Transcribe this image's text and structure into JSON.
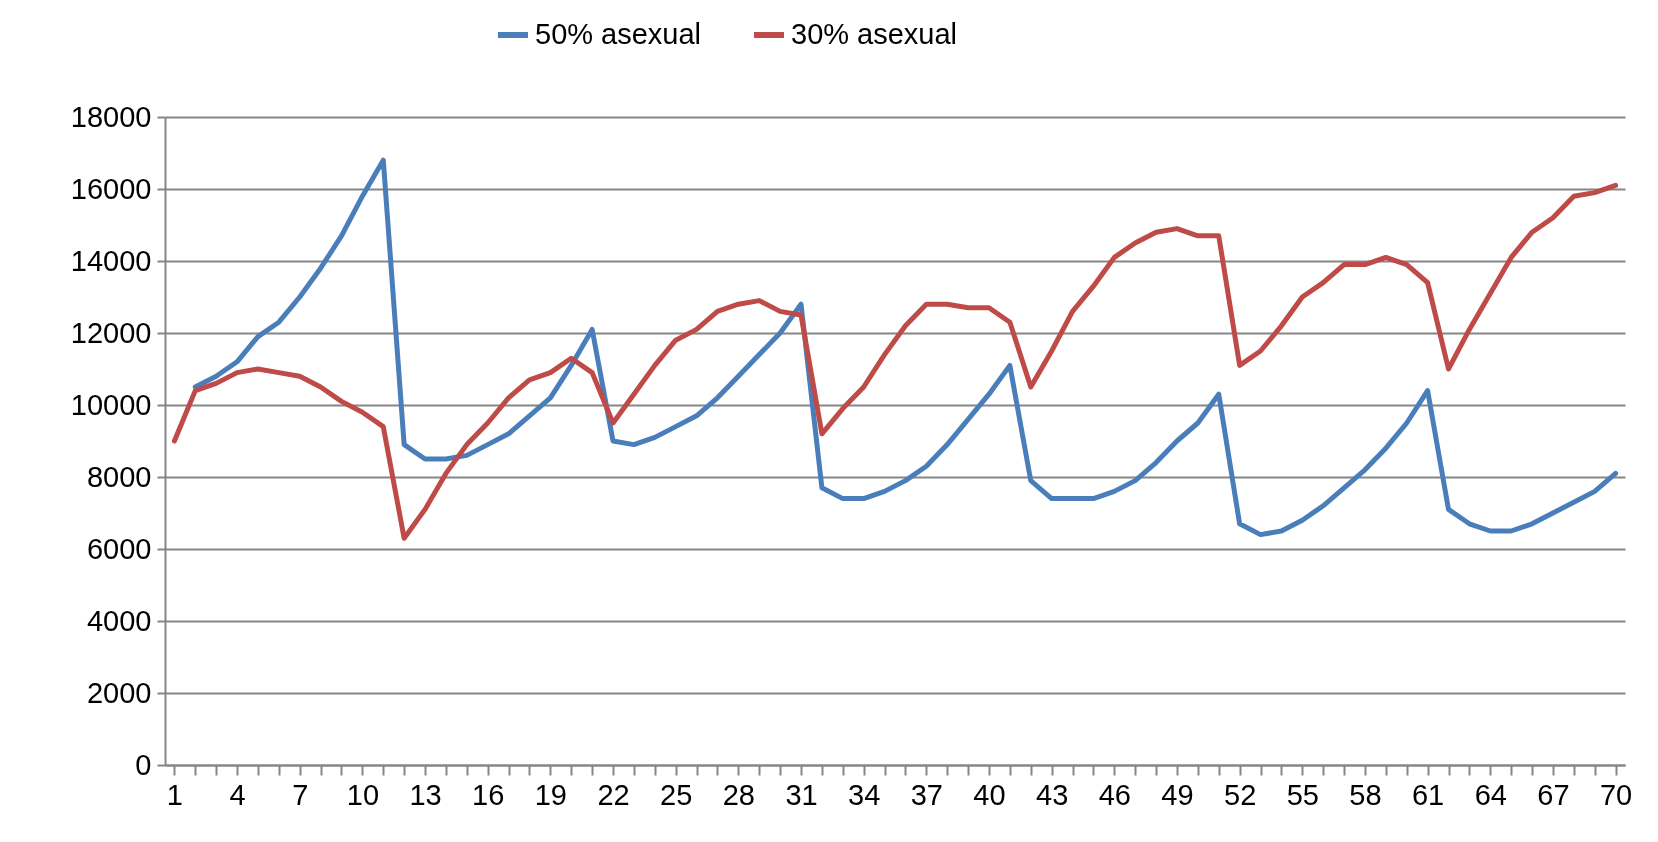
{
  "chart_data": {
    "type": "line",
    "categories": [
      "1",
      null,
      null,
      "4",
      null,
      null,
      "7",
      null,
      null,
      "10",
      null,
      null,
      "13",
      null,
      null,
      "16",
      null,
      null,
      "19",
      null,
      null,
      "22",
      null,
      null,
      "25",
      null,
      null,
      "28",
      null,
      null,
      "31",
      null,
      null,
      "34",
      null,
      null,
      "37",
      null,
      null,
      "40",
      null,
      null,
      "43",
      null,
      null,
      "46",
      null,
      null,
      "49",
      null,
      null,
      "52",
      null,
      null,
      "55",
      null,
      null,
      "58",
      null,
      null,
      "61",
      null,
      null,
      "64",
      null,
      null,
      "67",
      null,
      null,
      "70"
    ],
    "series": [
      {
        "name": "50% asexual",
        "color": "#4a7ebb",
        "values": [
          null,
          10500,
          10800,
          11200,
          11900,
          12300,
          13000,
          13800,
          14700,
          15800,
          16800,
          8900,
          8500,
          8500,
          8600,
          8900,
          9200,
          9700,
          10200,
          11100,
          12100,
          9000,
          8900,
          9100,
          9400,
          9700,
          10200,
          10800,
          11400,
          12000,
          12800,
          7700,
          7400,
          7400,
          7600,
          7900,
          8300,
          8900,
          9600,
          10300,
          11100,
          7900,
          7400,
          7400,
          7400,
          7600,
          7900,
          8400,
          9000,
          9500,
          10300,
          6700,
          6400,
          6500,
          6800,
          7200,
          7700,
          8200,
          8800,
          9500,
          10400,
          7100,
          6700,
          6500,
          6500,
          6700,
          7000,
          7300,
          7600,
          8100
        ]
      },
      {
        "name": "30% asexual",
        "color": "#be4b48",
        "values": [
          9000,
          10400,
          10600,
          10900,
          11000,
          10900,
          10800,
          10500,
          10100,
          9800,
          9400,
          6300,
          7100,
          8100,
          8900,
          9500,
          10200,
          10700,
          10900,
          11300,
          10900,
          9500,
          10300,
          11100,
          11800,
          12100,
          12600,
          12800,
          12900,
          12600,
          12500,
          9200,
          9900,
          10500,
          11400,
          12200,
          12800,
          12800,
          12700,
          12700,
          12300,
          10500,
          11500,
          12600,
          13300,
          14100,
          14500,
          14800,
          14900,
          14700,
          14700,
          11100,
          11500,
          12200,
          13000,
          13400,
          13900,
          13900,
          14100,
          13900,
          13400,
          11000,
          12100,
          13100,
          14100,
          14800,
          15200,
          15800,
          15900,
          16100
        ]
      }
    ],
    "ylim": [
      0,
      18000
    ],
    "yticks": [
      0,
      2000,
      4000,
      6000,
      8000,
      10000,
      12000,
      14000,
      16000,
      18000
    ],
    "grid": "y",
    "legend": "top",
    "marker": "none",
    "line_style": "solid"
  }
}
